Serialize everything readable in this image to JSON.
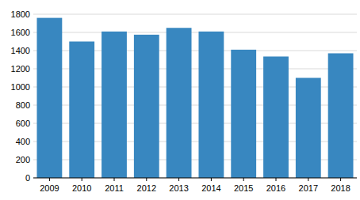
{
  "chart_data": {
    "type": "bar",
    "categories": [
      "2009",
      "2010",
      "2011",
      "2012",
      "2013",
      "2014",
      "2015",
      "2016",
      "2017",
      "2018"
    ],
    "values": [
      1760,
      1500,
      1610,
      1575,
      1650,
      1610,
      1410,
      1335,
      1100,
      1370
    ],
    "color": "#3887c0",
    "ylim": [
      0,
      1800
    ],
    "yticks": [
      0,
      200,
      400,
      600,
      800,
      1000,
      1200,
      1400,
      1600,
      1800
    ],
    "grid": true
  }
}
